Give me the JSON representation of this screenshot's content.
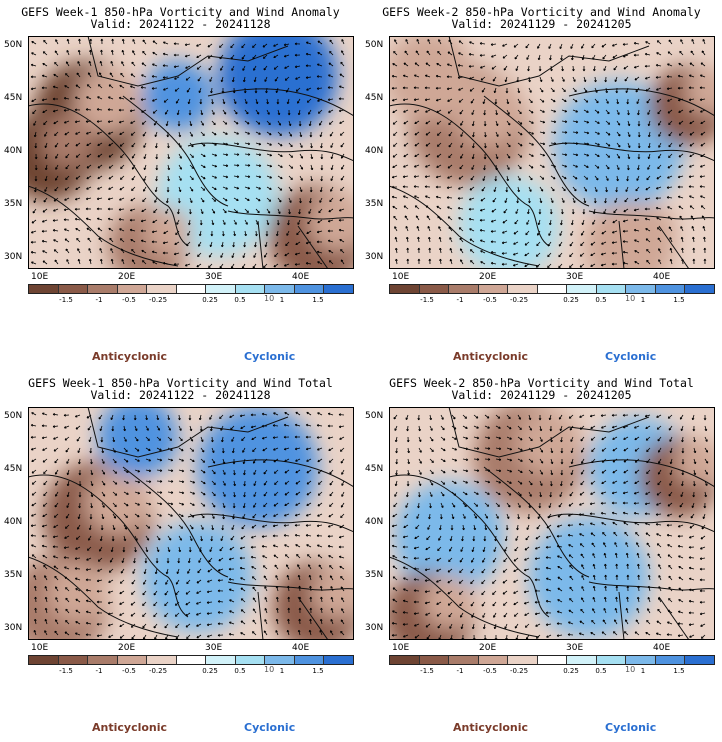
{
  "panels": [
    {
      "title": "GEFS Week-1 850-hPa Vorticity and Wind Anomaly",
      "valid": "Valid: 20241122 - 20241128"
    },
    {
      "title": "GEFS Week-2 850-hPa Vorticity and Wind Anomaly",
      "valid": "Valid: 20241129 - 20241205"
    },
    {
      "title": "GEFS Week-1 850-hPa Vorticity and Wind Total",
      "valid": "Valid: 20241122 - 20241128"
    },
    {
      "title": "GEFS Week-2 850-hPa Vorticity and Wind Total",
      "valid": "Valid: 20241129 - 20241205"
    }
  ],
  "lat_labels": [
    "50N",
    "45N",
    "40N",
    "35N",
    "30N"
  ],
  "lon_labels": [
    "10E",
    "20E",
    "30E",
    "40E"
  ],
  "colorbar": {
    "ticks": [
      "-1.5",
      "-1",
      "-0.5",
      "-0.25",
      "0.25",
      "0.5",
      "1",
      "1.5"
    ],
    "unit_mark": "10",
    "colors": [
      "#6e4433",
      "#8a5a48",
      "#a97c6a",
      "#cfa796",
      "#ead3c7",
      "#ffffff",
      "#d2f2f9",
      "#a6e0f2",
      "#7cb9ea",
      "#4f93e0",
      "#2a6fd1"
    ],
    "anticyclonic": "Anticyclonic",
    "cyclonic": "Cyclonic"
  }
}
